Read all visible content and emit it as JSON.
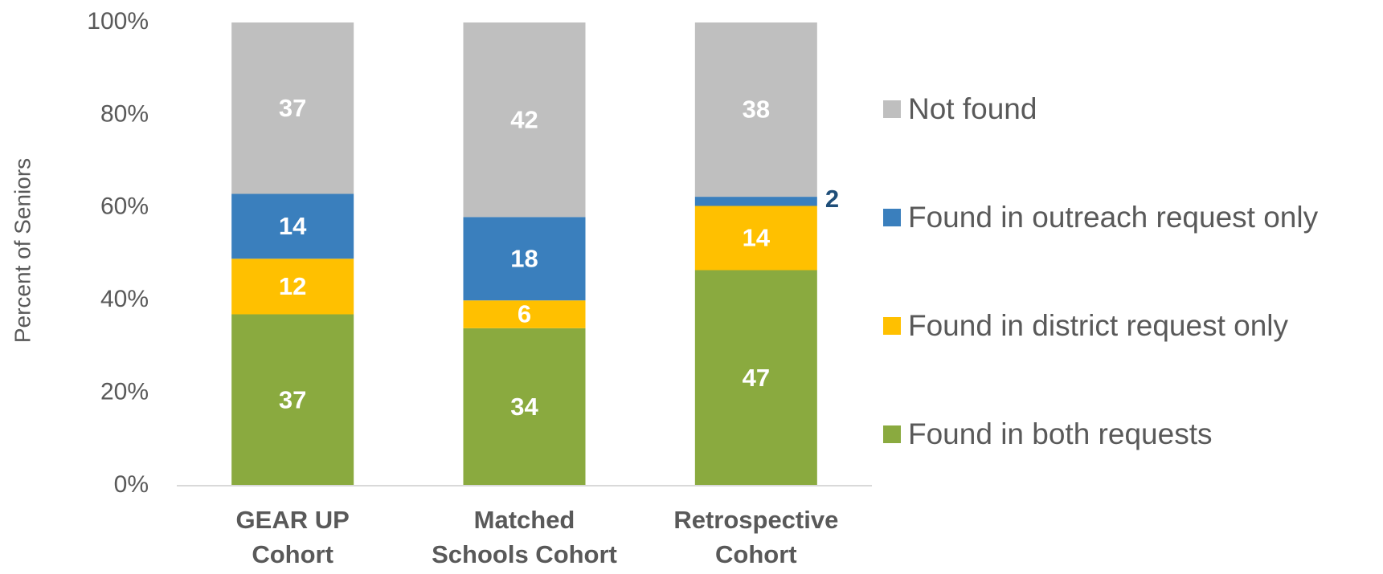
{
  "chart_data": {
    "type": "bar",
    "stacked": "percent",
    "y_label": "Percent of Seniors",
    "categories": [
      [
        "GEAR UP",
        "Cohort"
      ],
      [
        "Matched",
        "Schools Cohort"
      ],
      [
        "Retrospective",
        "Cohort"
      ]
    ],
    "series": [
      {
        "name": "Found in both requests",
        "color": "#8aaa3f",
        "values": [
          37,
          34,
          47
        ]
      },
      {
        "name": "Found in district request only",
        "color": "#ffc000",
        "values": [
          12,
          6,
          14
        ]
      },
      {
        "name": "Found in outreach request only",
        "color": "#3a7fbd",
        "values": [
          14,
          18,
          2
        ]
      },
      {
        "name": "Not found",
        "color": "#bfbfbf",
        "values": [
          37,
          42,
          38
        ]
      }
    ],
    "ylim": [
      0,
      100
    ],
    "yticks": [
      {
        "value": 0,
        "label": "0%"
      },
      {
        "value": 20,
        "label": "20%"
      },
      {
        "value": 40,
        "label": "40%"
      },
      {
        "value": 60,
        "label": "60%"
      },
      {
        "value": 80,
        "label": "80%"
      },
      {
        "value": 100,
        "label": "100%"
      }
    ],
    "legend": "right"
  }
}
